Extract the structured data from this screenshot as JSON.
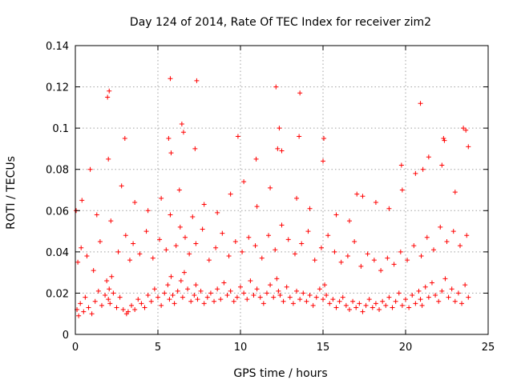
{
  "chart_data": {
    "type": "scatter",
    "title": "Day 124 of 2014, Rate Of TEC Index for receiver zim2",
    "xlabel": "GPS time / hours",
    "ylabel": "ROTI / TECUs",
    "xlim": [
      0,
      25
    ],
    "ylim": [
      0,
      0.14
    ],
    "xticks": [
      0,
      5,
      10,
      15,
      20,
      25
    ],
    "xtick_labels": [
      "0",
      "5",
      "10",
      "15",
      "20",
      "25"
    ],
    "yticks": [
      0,
      0.02,
      0.04,
      0.06,
      0.08,
      0.1,
      0.12,
      0.14
    ],
    "ytick_labels": [
      "0",
      "0.02",
      "0.04",
      "0.06",
      "0.08",
      "0.1",
      "0.12",
      "0.14"
    ],
    "grid": true,
    "marker": "plus",
    "marker_color": "#ff0000",
    "series": [
      {
        "name": "ROTI",
        "x": [
          0.1,
          0.2,
          0.3,
          0.5,
          0.6,
          0.8,
          1.0,
          1.2,
          1.4,
          1.6,
          1.8,
          1.9,
          2.0,
          2.05,
          2.1,
          2.2,
          2.3,
          2.5,
          2.7,
          2.9,
          3.1,
          3.2,
          3.4,
          3.6,
          3.8,
          4.0,
          4.2,
          4.4,
          4.6,
          4.8,
          5.0,
          5.2,
          5.4,
          5.6,
          5.7,
          5.8,
          5.9,
          6.0,
          6.2,
          6.4,
          6.5,
          6.6,
          6.8,
          7.0,
          7.2,
          7.3,
          7.4,
          7.6,
          7.8,
          8.0,
          8.2,
          8.4,
          8.6,
          8.8,
          9.0,
          9.2,
          9.4,
          9.6,
          9.8,
          10.0,
          10.2,
          10.4,
          10.6,
          10.8,
          11.0,
          11.2,
          11.4,
          11.6,
          11.8,
          12.0,
          12.2,
          12.3,
          12.4,
          12.6,
          12.8,
          13.0,
          13.2,
          13.4,
          13.6,
          13.8,
          14.0,
          14.2,
          14.4,
          14.6,
          14.8,
          15.0,
          15.1,
          15.2,
          15.4,
          15.6,
          15.8,
          16.0,
          16.2,
          16.4,
          16.6,
          16.8,
          17.0,
          17.2,
          17.4,
          17.6,
          17.8,
          18.0,
          18.2,
          18.4,
          18.6,
          18.8,
          19.0,
          19.2,
          19.4,
          19.6,
          19.8,
          20.0,
          20.2,
          20.4,
          20.6,
          20.8,
          20.9,
          21.0,
          21.2,
          21.4,
          21.6,
          21.8,
          22.0,
          22.2,
          22.4,
          22.6,
          22.8,
          23.0,
          23.2,
          23.4,
          23.6,
          23.8,
          0.15,
          0.35,
          0.7,
          1.1,
          1.5,
          2.15,
          2.6,
          3.05,
          3.3,
          3.5,
          3.9,
          4.3,
          4.7,
          5.1,
          5.5,
          5.75,
          6.1,
          6.35,
          6.65,
          6.9,
          7.3,
          7.7,
          8.1,
          8.5,
          8.9,
          9.3,
          9.7,
          10.1,
          10.5,
          10.9,
          11.3,
          11.7,
          12.1,
          12.5,
          12.9,
          13.3,
          13.7,
          14.1,
          14.5,
          14.9,
          15.3,
          15.7,
          16.1,
          16.5,
          16.9,
          17.3,
          17.7,
          18.1,
          18.5,
          18.9,
          19.3,
          19.7,
          20.1,
          20.5,
          20.95,
          21.3,
          21.7,
          22.1,
          22.5,
          22.9,
          23.3,
          23.7,
          0.4,
          1.3,
          2.0,
          2.8,
          3.6,
          4.4,
          5.2,
          5.8,
          6.3,
          7.1,
          7.8,
          8.6,
          9.4,
          10.2,
          11.0,
          11.8,
          12.5,
          13.4,
          14.2,
          15.0,
          15.8,
          16.6,
          17.4,
          18.2,
          19.0,
          19.8,
          20.6,
          21.4,
          22.2,
          23.0,
          23.8,
          0.05,
          0.9,
          1.95,
          3.0,
          5.65,
          6.55,
          7.25,
          9.85,
          10.95,
          12.25,
          13.55,
          15.05,
          17.05,
          19.75,
          21.05,
          22.35,
          23.65,
          2.05,
          5.75,
          6.45,
          7.35,
          12.15,
          12.35,
          13.6,
          20.9,
          22.3,
          23.5
        ],
        "y": [
          0.012,
          0.009,
          0.015,
          0.011,
          0.018,
          0.013,
          0.01,
          0.016,
          0.021,
          0.014,
          0.019,
          0.026,
          0.017,
          0.022,
          0.015,
          0.028,
          0.02,
          0.013,
          0.018,
          0.012,
          0.01,
          0.011,
          0.014,
          0.012,
          0.017,
          0.015,
          0.013,
          0.019,
          0.016,
          0.022,
          0.018,
          0.014,
          0.02,
          0.024,
          0.017,
          0.028,
          0.019,
          0.015,
          0.021,
          0.026,
          0.018,
          0.03,
          0.022,
          0.016,
          0.019,
          0.024,
          0.017,
          0.021,
          0.015,
          0.018,
          0.02,
          0.016,
          0.022,
          0.017,
          0.025,
          0.019,
          0.021,
          0.016,
          0.018,
          0.023,
          0.02,
          0.017,
          0.026,
          0.019,
          0.022,
          0.018,
          0.015,
          0.02,
          0.024,
          0.018,
          0.027,
          0.021,
          0.019,
          0.016,
          0.023,
          0.018,
          0.015,
          0.021,
          0.017,
          0.02,
          0.016,
          0.019,
          0.014,
          0.018,
          0.022,
          0.017,
          0.024,
          0.019,
          0.015,
          0.017,
          0.013,
          0.016,
          0.018,
          0.014,
          0.012,
          0.016,
          0.013,
          0.015,
          0.011,
          0.014,
          0.017,
          0.013,
          0.015,
          0.012,
          0.016,
          0.014,
          0.018,
          0.013,
          0.016,
          0.02,
          0.014,
          0.017,
          0.013,
          0.019,
          0.015,
          0.021,
          0.017,
          0.014,
          0.023,
          0.018,
          0.025,
          0.019,
          0.016,
          0.021,
          0.027,
          0.018,
          0.022,
          0.016,
          0.02,
          0.015,
          0.024,
          0.018,
          0.035,
          0.042,
          0.038,
          0.031,
          0.045,
          0.055,
          0.04,
          0.048,
          0.036,
          0.044,
          0.039,
          0.05,
          0.037,
          0.046,
          0.041,
          0.058,
          0.043,
          0.052,
          0.047,
          0.039,
          0.044,
          0.051,
          0.036,
          0.042,
          0.049,
          0.038,
          0.045,
          0.04,
          0.047,
          0.043,
          0.037,
          0.048,
          0.041,
          0.053,
          0.046,
          0.039,
          0.044,
          0.05,
          0.036,
          0.042,
          0.048,
          0.04,
          0.035,
          0.038,
          0.045,
          0.033,
          0.039,
          0.036,
          0.031,
          0.037,
          0.034,
          0.04,
          0.036,
          0.043,
          0.038,
          0.047,
          0.041,
          0.052,
          0.045,
          0.05,
          0.043,
          0.048,
          0.065,
          0.058,
          0.085,
          0.072,
          0.064,
          0.06,
          0.066,
          0.088,
          0.07,
          0.057,
          0.063,
          0.059,
          0.068,
          0.074,
          0.062,
          0.071,
          0.089,
          0.066,
          0.061,
          0.084,
          0.058,
          0.055,
          0.067,
          0.064,
          0.061,
          0.07,
          0.078,
          0.086,
          0.082,
          0.069,
          0.091,
          0.06,
          0.08,
          0.115,
          0.095,
          0.095,
          0.098,
          0.09,
          0.096,
          0.085,
          0.09,
          0.096,
          0.095,
          0.068,
          0.082,
          0.08,
          0.094,
          0.099,
          0.118,
          0.124,
          0.102,
          0.123,
          0.12,
          0.1,
          0.117,
          0.112,
          0.095,
          0.1
        ]
      }
    ]
  }
}
